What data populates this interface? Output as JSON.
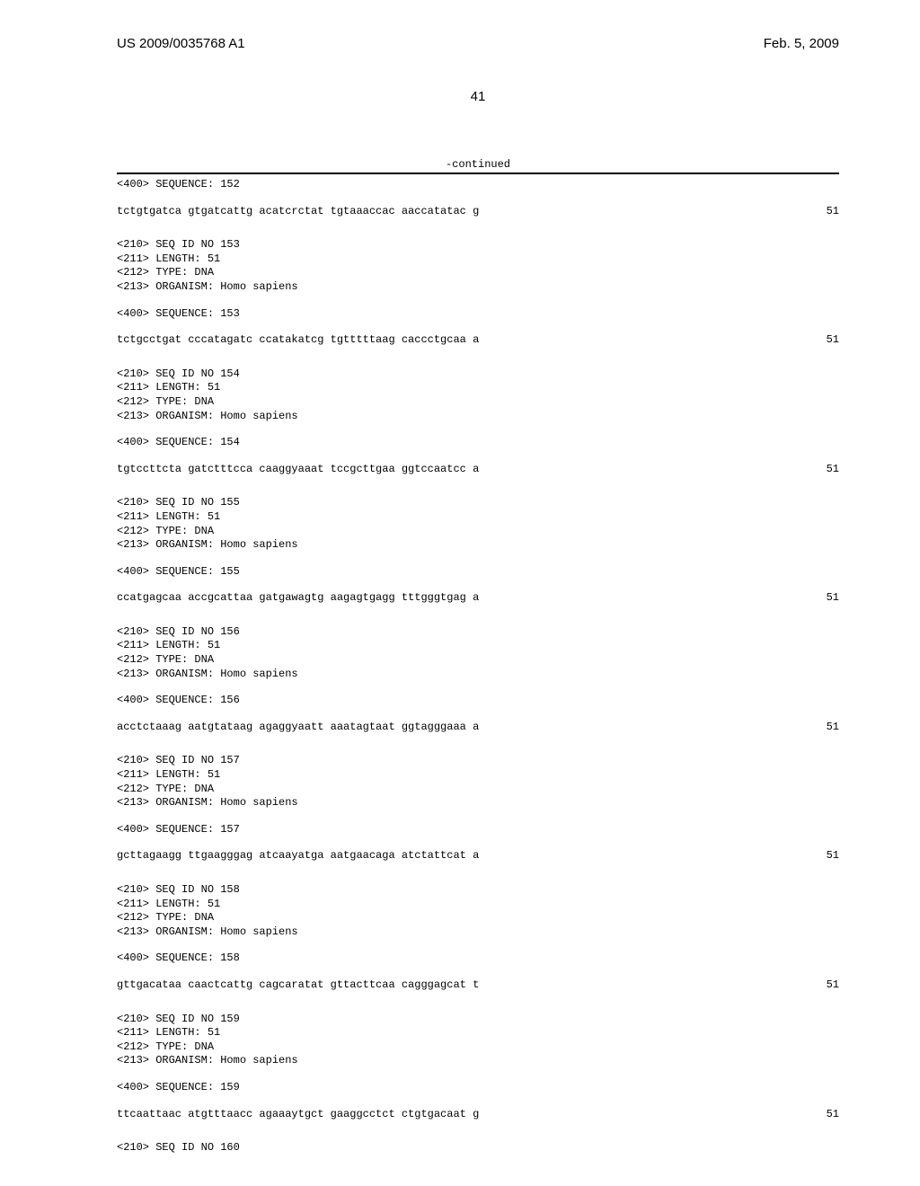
{
  "header": {
    "left": "US 2009/0035768 A1",
    "right": "Feb. 5, 2009"
  },
  "page_number": "41",
  "continued_label": "-continued",
  "seq_header_prefix": "<400> SEQUENCE: ",
  "meta_block": {
    "seq_id_prefix": "<210> SEQ ID NO ",
    "length_line": "<211> LENGTH: 51",
    "type_line": "<212> TYPE: DNA",
    "organism_line": "<213> ORGANISM: Homo sapiens"
  },
  "sequence_length_label": "51",
  "entries": [
    {
      "id": "152",
      "show_meta": false,
      "sequence": "tctgtgatca gtgatcattg acatcrctat tgtaaaccac aaccatatac g"
    },
    {
      "id": "153",
      "show_meta": true,
      "sequence": "tctgcctgat cccatagatc ccatakatcg tgtttttaag caccctgcaa a"
    },
    {
      "id": "154",
      "show_meta": true,
      "sequence": "tgtccttcta gatctttcca caaggyaaat tccgcttgaa ggtccaatcc a"
    },
    {
      "id": "155",
      "show_meta": true,
      "sequence": "ccatgagcaa accgcattaa gatgawagtg aagagtgagg tttgggtgag a"
    },
    {
      "id": "156",
      "show_meta": true,
      "sequence": "acctctaaag aatgtataag agaggyaatt aaatagtaat ggtagggaaa a"
    },
    {
      "id": "157",
      "show_meta": true,
      "sequence": "gcttagaagg ttgaagggag atcaayatga aatgaacaga atctattcat a"
    },
    {
      "id": "158",
      "show_meta": true,
      "sequence": "gttgacataa caactcattg cagcaratat gttacttcaa cagggagcat t"
    },
    {
      "id": "159",
      "show_meta": true,
      "sequence": "ttcaattaac atgtttaacc agaaaytgct gaaggcctct ctgtgacaat g"
    }
  ],
  "trailing_seq_id": "160"
}
